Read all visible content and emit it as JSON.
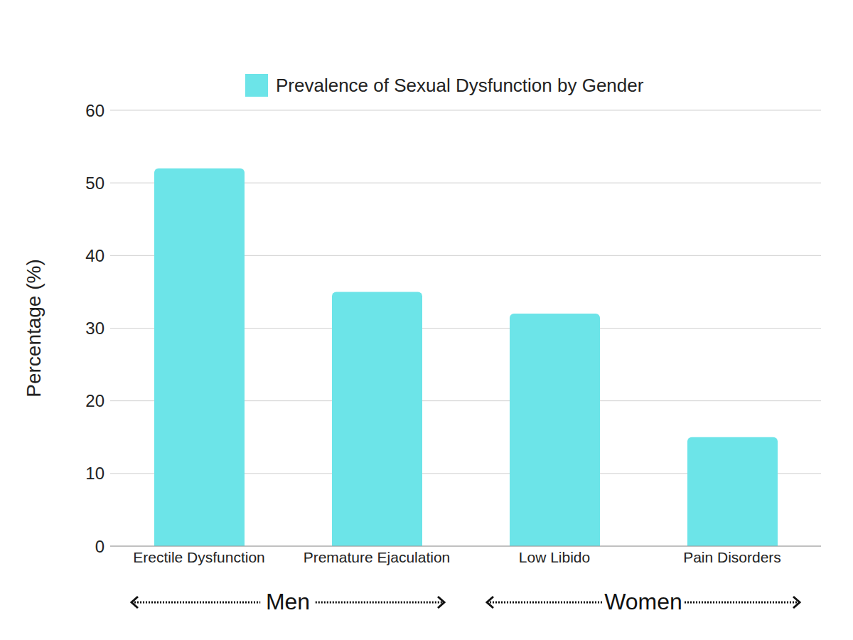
{
  "chart_data": {
    "type": "bar",
    "legend": "top",
    "y_label": "Percentage (%)",
    "categories": [
      "Erectile Dysfunction",
      "Premature Ejaculation",
      "Low Libido",
      "Pain Disorders"
    ],
    "series": [
      {
        "name": "Prevalence of Sexual Dysfunction by Gender",
        "color": "#6ce4e8",
        "values": [
          52,
          35,
          32,
          15
        ]
      }
    ],
    "ylim": [
      0,
      60
    ],
    "yticks": [
      0,
      10,
      20,
      30,
      40,
      50,
      60
    ],
    "grid": true,
    "groups": [
      {
        "label": "Men",
        "categories": [
          "Erectile Dysfunction",
          "Premature Ejaculation"
        ]
      },
      {
        "label": "Women",
        "categories": [
          "Low Libido",
          "Pain Disorders"
        ]
      }
    ]
  }
}
